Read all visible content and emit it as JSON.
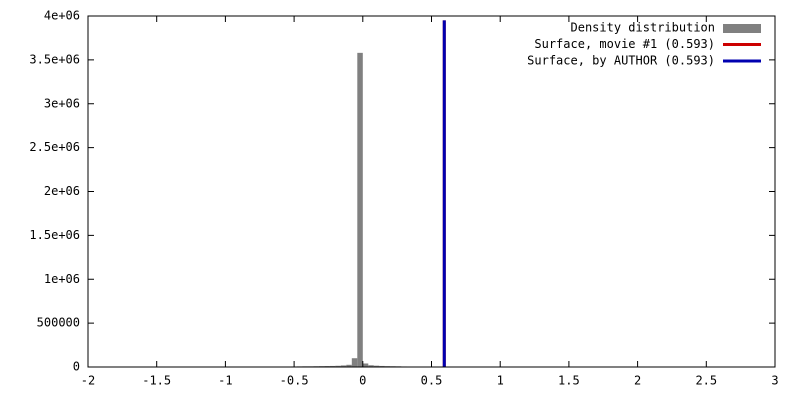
{
  "chart_data": {
    "type": "histogram",
    "bins": [
      -0.6,
      -0.56,
      -0.52,
      -0.48,
      -0.44,
      -0.4,
      -0.36,
      -0.32,
      -0.28,
      -0.24,
      -0.2,
      -0.16,
      -0.12,
      -0.08,
      -0.04,
      0,
      0.04,
      0.08,
      0.12,
      0.16,
      0.2,
      0.24,
      0.28,
      0.32,
      0.36
    ],
    "counts": [
      3000,
      5000,
      6000,
      7000,
      8000,
      8000,
      9000,
      10000,
      11000,
      12000,
      14000,
      18000,
      25000,
      100000,
      3580000,
      40000,
      20000,
      15000,
      12000,
      10000,
      9000,
      8000,
      6000,
      4000
    ],
    "name": "Density distribution",
    "color": "#808080",
    "lines": [
      {
        "name": "Surface, movie #1 (0.593)",
        "color": "#cc0000",
        "x": [
          0.593,
          0.593
        ],
        "values": [
          0,
          3950000
        ]
      },
      {
        "name": "Surface, by AUTHOR (0.593)",
        "color": "#0000b0",
        "x": [
          0.593,
          0.593
        ],
        "values": [
          0,
          3950000
        ]
      }
    ],
    "xlim": [
      -2,
      3
    ],
    "xticks": [
      -2,
      -1.5,
      -1,
      -0.5,
      0,
      0.5,
      1,
      1.5,
      2,
      2.5,
      3
    ],
    "ylim": [
      0,
      4000000
    ],
    "yticks": [
      0,
      500000,
      {
        "value": 1000000,
        "label": "1e+06"
      },
      {
        "value": 1500000,
        "label": "1.5e+06"
      },
      {
        "value": 2000000,
        "label": "2e+06"
      },
      {
        "value": 2500000,
        "label": "2.5e+06"
      },
      {
        "value": 3000000,
        "label": "3e+06"
      },
      {
        "value": 3500000,
        "label": "3.5e+06"
      },
      {
        "value": 4000000,
        "label": "4e+06"
      }
    ],
    "legend": "top-right",
    "grid": false
  }
}
